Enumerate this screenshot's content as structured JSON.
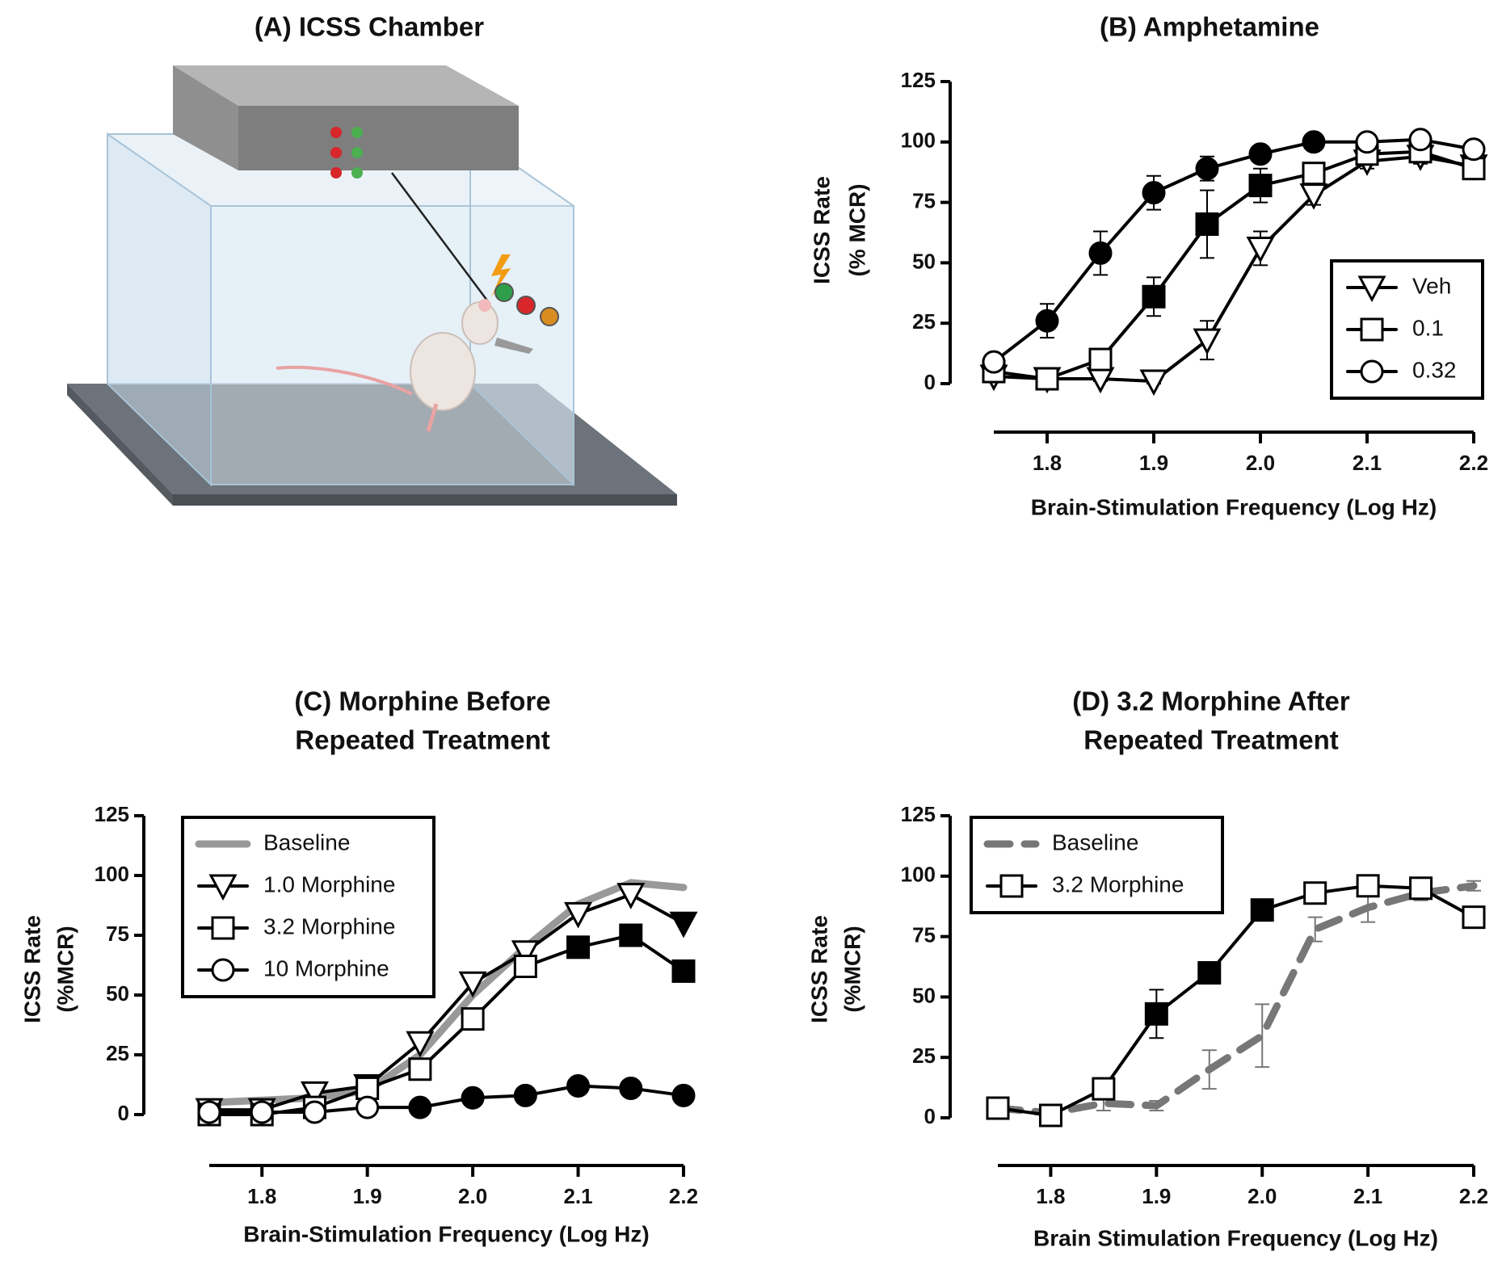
{
  "illustration": {
    "title": "(A) ICSS Chamber"
  },
  "chart_data": [
    {
      "type": "line",
      "title": [
        "(B) Amphetamine"
      ],
      "ylabel": [
        "ICSS Rate",
        "(% MCR)"
      ],
      "xlabel": "Brain-Stimulation Frequency (Log Hz)",
      "x": [
        1.75,
        1.8,
        1.85,
        1.9,
        1.95,
        2.0,
        2.05,
        2.1,
        2.15,
        2.2
      ],
      "xlim": [
        1.75,
        2.2
      ],
      "xticks": [
        1.8,
        1.9,
        {
          "value": 2.0,
          "label": "2.0"
        },
        2.1,
        2.2
      ],
      "ylim": [
        0,
        125
      ],
      "yticks": [
        0,
        25,
        50,
        75,
        100,
        125
      ],
      "legend": "lower right",
      "series": [
        {
          "name": "Veh",
          "color": "#000000",
          "marker": "triangle-down",
          "style": "solid",
          "values": [
            3,
            2,
            2,
            1,
            18,
            56,
            78,
            92,
            94,
            90
          ],
          "errors": [
            2,
            1,
            1,
            1,
            8,
            7,
            4,
            3,
            3,
            3
          ],
          "filled": [
            false,
            false,
            false,
            false,
            false,
            false,
            false,
            false,
            false,
            false
          ]
        },
        {
          "name": "0.1",
          "color": "#000000",
          "marker": "square",
          "style": "solid",
          "values": [
            5,
            2,
            10,
            36,
            66,
            82,
            87,
            95,
            96,
            89
          ],
          "errors": [
            2,
            2,
            3,
            8,
            14,
            7,
            3,
            3,
            3,
            3
          ],
          "filled": [
            false,
            false,
            false,
            true,
            true,
            true,
            false,
            false,
            false,
            false
          ]
        },
        {
          "name": "0.32",
          "color": "#000000",
          "marker": "circle",
          "style": "solid",
          "values": [
            9,
            26,
            54,
            79,
            89,
            95,
            100,
            100,
            101,
            97
          ],
          "errors": [
            2,
            7,
            9,
            7,
            5,
            3,
            2,
            2,
            2,
            2
          ],
          "filled": [
            false,
            true,
            true,
            true,
            true,
            true,
            true,
            false,
            false,
            false
          ]
        }
      ]
    },
    {
      "type": "line",
      "title": [
        "(C) Morphine Before",
        "Repeated Treatment"
      ],
      "ylabel": [
        "ICSS Rate",
        "(%MCR)"
      ],
      "xlabel": "Brain-Stimulation Frequency (Log Hz)",
      "x": [
        1.75,
        1.8,
        1.85,
        1.9,
        1.95,
        2.0,
        2.05,
        2.1,
        2.15,
        2.2
      ],
      "xlim": [
        1.75,
        2.2
      ],
      "xticks": [
        1.8,
        1.9,
        {
          "value": 2.0,
          "label": "2.0"
        },
        2.1,
        2.2
      ],
      "ylim": [
        0,
        125
      ],
      "yticks": [
        0,
        25,
        50,
        75,
        100,
        125
      ],
      "legend": "upper left",
      "series": [
        {
          "name": "Baseline",
          "color": "#999999",
          "marker": "none",
          "style": "solid",
          "values": [
            5,
            6,
            7,
            10,
            25,
            50,
            70,
            88,
            97,
            95
          ]
        },
        {
          "name": "1.0 Morphine",
          "color": "#000000",
          "marker": "triangle-down",
          "style": "solid",
          "values": [
            2,
            2,
            9,
            12,
            30,
            55,
            68,
            84,
            92,
            80
          ],
          "filled": [
            false,
            false,
            false,
            false,
            false,
            false,
            false,
            false,
            false,
            true
          ]
        },
        {
          "name": "3.2 Morphine",
          "color": "#000000",
          "marker": "square",
          "style": "solid",
          "values": [
            0,
            0,
            3,
            11,
            19,
            40,
            62,
            70,
            75,
            60
          ],
          "filled": [
            false,
            false,
            false,
            false,
            false,
            false,
            false,
            true,
            true,
            true
          ]
        },
        {
          "name": "10 Morphine",
          "color": "#000000",
          "marker": "circle",
          "style": "solid",
          "values": [
            1,
            1,
            1,
            3,
            3,
            7,
            8,
            12,
            11,
            8
          ],
          "filled": [
            false,
            false,
            false,
            false,
            true,
            true,
            true,
            true,
            true,
            true
          ]
        }
      ]
    },
    {
      "type": "line",
      "title": [
        "(D) 3.2 Morphine After",
        "Repeated Treatment"
      ],
      "ylabel": [
        "ICSS Rate",
        "(%MCR)"
      ],
      "xlabel": "Brain Stimulation Frequency (Log Hz)",
      "x": [
        1.75,
        1.8,
        1.85,
        1.9,
        1.95,
        2.0,
        2.05,
        2.1,
        2.15,
        2.2
      ],
      "xlim": [
        1.75,
        2.2
      ],
      "xticks": [
        1.8,
        1.9,
        {
          "value": 2.0,
          "label": "2.0"
        },
        2.1,
        2.2
      ],
      "ylim": [
        0,
        125
      ],
      "yticks": [
        0,
        25,
        50,
        75,
        100,
        125
      ],
      "legend": "upper left",
      "series": [
        {
          "name": "Baseline",
          "color": "#777777",
          "marker": "none",
          "style": "dashed",
          "values": [
            4,
            2,
            6,
            5,
            20,
            34,
            78,
            87,
            93,
            96
          ],
          "errors": [
            1,
            1,
            3,
            2,
            8,
            13,
            5,
            6,
            3,
            2
          ]
        },
        {
          "name": "3.2 Morphine",
          "color": "#000000",
          "marker": "square",
          "style": "solid",
          "values": [
            4,
            1,
            12,
            43,
            60,
            86,
            93,
            96,
            95,
            83
          ],
          "errors": [
            1,
            1,
            2,
            10,
            4,
            3,
            2,
            2,
            2,
            4
          ],
          "filled": [
            false,
            false,
            false,
            true,
            true,
            true,
            false,
            false,
            false,
            false
          ]
        }
      ]
    }
  ]
}
